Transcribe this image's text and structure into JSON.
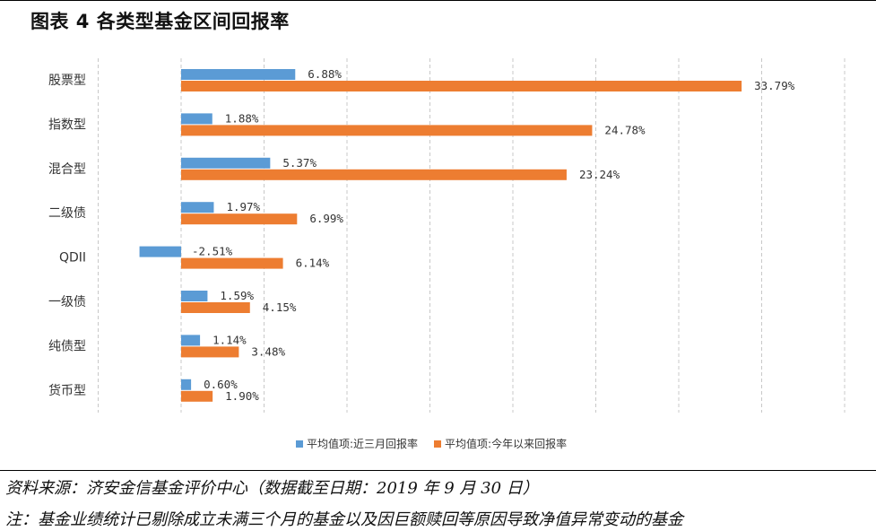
{
  "title": "图表 4  各类型基金区间回报率",
  "source": "资料来源：济安金信基金评价中心（数据截至日期：2019 年 9 月 30 日）",
  "note": "注：基金业绩统计已剔除成立未满三个月的基金以及因巨额赎回等原因导致净值异常变动的基金",
  "chart_data": {
    "type": "bar",
    "orientation": "horizontal",
    "categories": [
      "股票型",
      "指数型",
      "混合型",
      "二级债",
      "QDII",
      "一级债",
      "纯债型",
      "货币型"
    ],
    "series": [
      {
        "name": "平均值项:近三月回报率",
        "color": "#5b9bd5",
        "values": [
          6.88,
          1.88,
          5.37,
          1.97,
          -2.51,
          1.59,
          1.14,
          0.6
        ],
        "labels": [
          "6.88%",
          "1.88%",
          "5.37%",
          "1.97%",
          "-2.51%",
          "1.59%",
          "1.14%",
          "0.60%"
        ]
      },
      {
        "name": "平均值项:今年以来回报率",
        "color": "#ed7d31",
        "values": [
          33.79,
          24.78,
          23.24,
          6.99,
          6.14,
          4.15,
          3.48,
          1.9
        ],
        "labels": [
          "33.79%",
          "24.78%",
          "23.24%",
          "6.99%",
          "6.14%",
          "4.15%",
          "3.48%",
          "1.90%"
        ]
      }
    ],
    "xlim": [
      -5,
      40
    ],
    "grid": true,
    "legend_position": "bottom"
  }
}
